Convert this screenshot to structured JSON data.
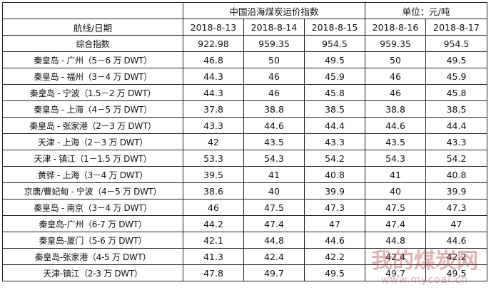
{
  "table": {
    "title": "中国沿海煤炭运价指数",
    "unit": "单位：元/吨",
    "header": [
      "航线/日期",
      "2018-8-13",
      "2018-8-14",
      "2018-8-15",
      "2018-8-16",
      "2018-8-17"
    ],
    "rows": [
      [
        "综合指数",
        "922.98",
        "959.35",
        "954.5",
        "959.35",
        "954.5"
      ],
      [
        "秦皇岛 - 广州（5－6 万 DWT）",
        "46.8",
        "50",
        "49.5",
        "50",
        "49.5"
      ],
      [
        "秦皇岛 - 福州（3－4 万 DWT）",
        "44.3",
        "46",
        "45.9",
        "46",
        "45.9"
      ],
      [
        "秦皇岛 - 宁波（1.5－2 万 DWT）",
        "44.3",
        "46",
        "45.8",
        "46",
        "45.8"
      ],
      [
        "秦皇岛 - 上海（4－5 万 DWT）",
        "37.8",
        "38.8",
        "38.5",
        "38.8",
        "38.5"
      ],
      [
        "秦皇岛 - 张家港（2－3 万 DWT）",
        "43.3",
        "44.6",
        "44.4",
        "44.6",
        "44.4"
      ],
      [
        "天津 - 上海（2－3 万 DWT）",
        "42",
        "43.5",
        "43.3",
        "43.5",
        "43.3"
      ],
      [
        "天津 - 镇江（1－1.5 万 DWT）",
        "53.3",
        "54.3",
        "54.2",
        "54.3",
        "54.2"
      ],
      [
        "黄骅 - 上海（3－4 万 DWT）",
        "39.5",
        "41",
        "40.8",
        "41",
        "40.8"
      ],
      [
        "京唐/曹妃甸 - 宁波（4－5 万 DWT）",
        "38.6",
        "40",
        "39.9",
        "40",
        "39.9"
      ],
      [
        "秦皇岛 - 南京（3－4 万 DWT）",
        "46",
        "47.5",
        "47.3",
        "47.5",
        "47.3"
      ],
      [
        "秦皇岛-广州（6-7 万 DWT）",
        "44.2",
        "47.4",
        "47",
        "47.4",
        "47"
      ],
      [
        "秦皇岛-厦门（5-6 万 DWT）",
        "42.1",
        "44.8",
        "44.6",
        "44.8",
        "44.6"
      ],
      [
        "秦皇岛-张家港（4-5 万 DWT）",
        "41.3",
        "42.4",
        "42.2",
        "42.4",
        "42.2"
      ],
      [
        "天津-镇江（2-3 万 DWT）",
        "47.8",
        "49.7",
        "49.5",
        "49.7",
        "49.5"
      ]
    ]
  },
  "watermark": {
    "name": "我的煤炭网",
    "url": "www.mycoal.cn"
  }
}
